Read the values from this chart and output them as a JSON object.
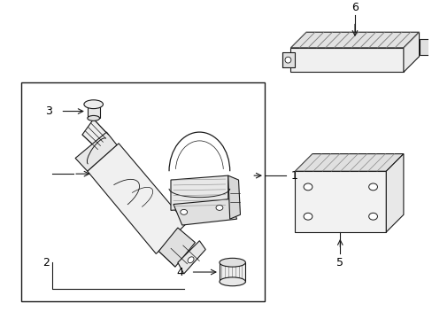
{
  "bg_color": "#ffffff",
  "line_color": "#1a1a1a",
  "label_color": "#000000",
  "fig_width": 4.89,
  "fig_height": 3.6,
  "dpi": 100,
  "font_size": 9
}
